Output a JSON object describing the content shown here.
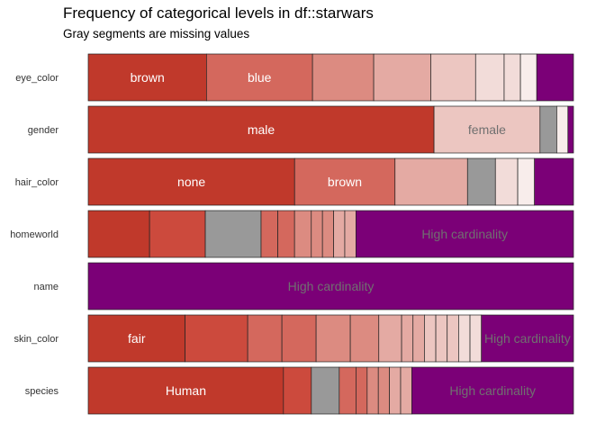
{
  "chart_data": {
    "type": "bar",
    "orientation": "horizontal",
    "stacked": true,
    "normalized": true,
    "title": "Frequency of categorical levels in df::starwars",
    "subtitle": "Gray segments are missing values",
    "xlabel": "",
    "ylabel": "",
    "grid": false,
    "legend": "none",
    "colors": {
      "missing": "#999999",
      "high_cardinality": "#7b0077",
      "label_dark_segment": "#ffffff",
      "label_light_segment": "#707070",
      "level_palette": [
        "#c0392b",
        "#cc4a3d",
        "#d4685d",
        "#dc8b81",
        "#e4aaa3",
        "#ecc6c1",
        "#f2dcd9",
        "#f8edeb"
      ]
    },
    "variables": [
      {
        "name": "eye_color",
        "segments": [
          {
            "label": "brown",
            "fraction": 0.2437,
            "kind": "level",
            "shade": 0
          },
          {
            "label": "blue",
            "fraction": 0.2185,
            "kind": "level",
            "shade": 2
          },
          {
            "label": "",
            "fraction": 0.1261,
            "kind": "level",
            "shade": 3
          },
          {
            "label": "",
            "fraction": 0.1176,
            "kind": "level",
            "shade": 4
          },
          {
            "label": "",
            "fraction": 0.0924,
            "kind": "level",
            "shade": 5
          },
          {
            "label": "",
            "fraction": 0.0588,
            "kind": "level",
            "shade": 6
          },
          {
            "label": "",
            "fraction": 0.0336,
            "kind": "level",
            "shade": 6
          },
          {
            "label": "",
            "fraction": 0.0336,
            "kind": "level",
            "shade": 7
          },
          {
            "label": "",
            "fraction": 0.0757,
            "kind": "other"
          }
        ]
      },
      {
        "name": "gender",
        "segments": [
          {
            "label": "male",
            "fraction": 0.7126,
            "kind": "level",
            "shade": 0
          },
          {
            "label": "female",
            "fraction": 0.2184,
            "kind": "level",
            "shade": 5
          },
          {
            "label": "",
            "fraction": 0.0345,
            "kind": "missing"
          },
          {
            "label": "",
            "fraction": 0.023,
            "kind": "level",
            "shade": 7
          },
          {
            "label": "",
            "fraction": 0.0115,
            "kind": "other"
          }
        ]
      },
      {
        "name": "hair_color",
        "segments": [
          {
            "label": "none",
            "fraction": 0.4253,
            "kind": "level",
            "shade": 0
          },
          {
            "label": "brown",
            "fraction": 0.2069,
            "kind": "level",
            "shade": 2
          },
          {
            "label": "",
            "fraction": 0.1494,
            "kind": "level",
            "shade": 4
          },
          {
            "label": "",
            "fraction": 0.0575,
            "kind": "missing"
          },
          {
            "label": "",
            "fraction": 0.046,
            "kind": "level",
            "shade": 6
          },
          {
            "label": "",
            "fraction": 0.0345,
            "kind": "level",
            "shade": 7
          },
          {
            "label": "",
            "fraction": 0.0804,
            "kind": "other"
          }
        ]
      },
      {
        "name": "homeworld",
        "segments": [
          {
            "label": "",
            "fraction": 0.1264,
            "kind": "level",
            "shade": 0
          },
          {
            "label": "",
            "fraction": 0.1149,
            "kind": "level",
            "shade": 1
          },
          {
            "label": "",
            "fraction": 0.1149,
            "kind": "missing"
          },
          {
            "label": "",
            "fraction": 0.0345,
            "kind": "level",
            "shade": 2
          },
          {
            "label": "",
            "fraction": 0.0345,
            "kind": "level",
            "shade": 2
          },
          {
            "label": "",
            "fraction": 0.0345,
            "kind": "level",
            "shade": 3
          },
          {
            "label": "",
            "fraction": 0.023,
            "kind": "level",
            "shade": 3
          },
          {
            "label": "",
            "fraction": 0.023,
            "kind": "level",
            "shade": 3
          },
          {
            "label": "",
            "fraction": 0.023,
            "kind": "level",
            "shade": 4
          },
          {
            "label": "",
            "fraction": 0.023,
            "kind": "level",
            "shade": 4
          },
          {
            "label": "High cardinality",
            "fraction": 0.4483,
            "kind": "other"
          }
        ]
      },
      {
        "name": "name",
        "segments": [
          {
            "label": "High cardinality",
            "fraction": 1.0,
            "kind": "other"
          }
        ]
      },
      {
        "name": "skin_color",
        "segments": [
          {
            "label": "fair",
            "fraction": 0.1954,
            "kind": "level",
            "shade": 0
          },
          {
            "label": "",
            "fraction": 0.1264,
            "kind": "level",
            "shade": 1
          },
          {
            "label": "",
            "fraction": 0.069,
            "kind": "level",
            "shade": 2
          },
          {
            "label": "",
            "fraction": 0.069,
            "kind": "level",
            "shade": 2
          },
          {
            "label": "",
            "fraction": 0.069,
            "kind": "level",
            "shade": 3
          },
          {
            "label": "",
            "fraction": 0.0575,
            "kind": "level",
            "shade": 3
          },
          {
            "label": "",
            "fraction": 0.046,
            "kind": "level",
            "shade": 4
          },
          {
            "label": "",
            "fraction": 0.023,
            "kind": "level",
            "shade": 4
          },
          {
            "label": "",
            "fraction": 0.023,
            "kind": "level",
            "shade": 4
          },
          {
            "label": "",
            "fraction": 0.023,
            "kind": "level",
            "shade": 5
          },
          {
            "label": "",
            "fraction": 0.023,
            "kind": "level",
            "shade": 5
          },
          {
            "label": "",
            "fraction": 0.023,
            "kind": "level",
            "shade": 5
          },
          {
            "label": "",
            "fraction": 0.023,
            "kind": "level",
            "shade": 6
          },
          {
            "label": "",
            "fraction": 0.023,
            "kind": "level",
            "shade": 6
          },
          {
            "label": "High cardinality",
            "fraction": 0.1858,
            "kind": "other"
          }
        ]
      },
      {
        "name": "species",
        "segments": [
          {
            "label": "Human",
            "fraction": 0.4023,
            "kind": "level",
            "shade": 0
          },
          {
            "label": "",
            "fraction": 0.0575,
            "kind": "level",
            "shade": 1
          },
          {
            "label": "",
            "fraction": 0.0575,
            "kind": "missing"
          },
          {
            "label": "",
            "fraction": 0.0345,
            "kind": "level",
            "shade": 2
          },
          {
            "label": "",
            "fraction": 0.023,
            "kind": "level",
            "shade": 2
          },
          {
            "label": "",
            "fraction": 0.023,
            "kind": "level",
            "shade": 3
          },
          {
            "label": "",
            "fraction": 0.023,
            "kind": "level",
            "shade": 3
          },
          {
            "label": "",
            "fraction": 0.023,
            "kind": "level",
            "shade": 4
          },
          {
            "label": "",
            "fraction": 0.023,
            "kind": "level",
            "shade": 4
          },
          {
            "label": "High cardinality",
            "fraction": 0.3332,
            "kind": "other"
          }
        ]
      }
    ]
  }
}
